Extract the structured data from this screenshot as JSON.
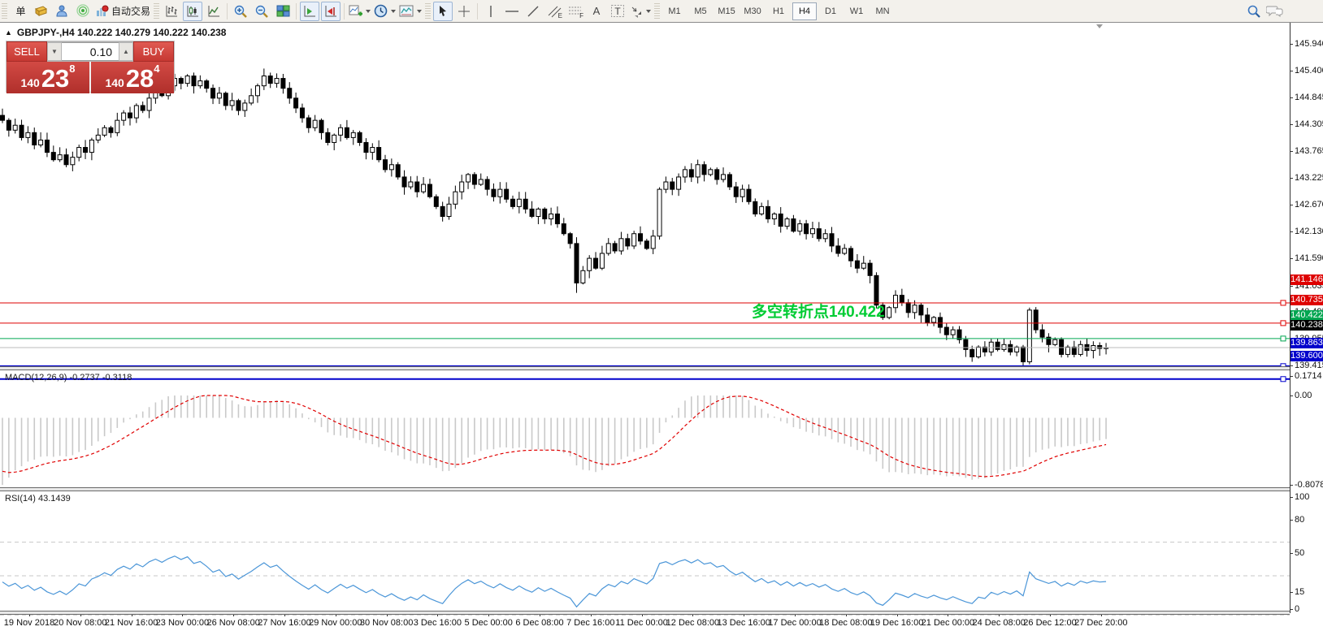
{
  "toolbar": {
    "new_order_label": "单",
    "autotrading_label": "自动交易",
    "letters": {
      "channel": "E",
      "fibo": "F",
      "text": "A",
      "label": "T"
    },
    "timeframes": [
      "M1",
      "M5",
      "M15",
      "M30",
      "H1",
      "H4",
      "D1",
      "W1",
      "MN"
    ],
    "active_timeframe": "H4"
  },
  "chart": {
    "title": "GBPJPY-,H4  140.222 140.279 140.222 140.238",
    "one_click": {
      "sell_label": "SELL",
      "buy_label": "BUY",
      "volume": "0.10",
      "sell_small": "140",
      "sell_big": "23",
      "sell_sup": "8",
      "buy_small": "140",
      "buy_big": "28",
      "buy_sup": "4"
    },
    "annotation": {
      "text": "多空转折点140.422",
      "color": "#00CC33"
    },
    "price_axis_ticks": [
      "145.940",
      "145.400",
      "144.845",
      "144.305",
      "143.765",
      "143.225",
      "142.670",
      "142.130",
      "141.590",
      "141.035",
      "140.495",
      "139.955",
      "139.415"
    ],
    "hlines": [
      {
        "label": "141.146",
        "value": 141.146,
        "color": "#DE0000",
        "width": 1
      },
      {
        "label": "140.735",
        "value": 140.735,
        "color": "#DE0000",
        "width": 1
      },
      {
        "label": "140.422",
        "value": 140.422,
        "color": "#00A651",
        "width": 1
      },
      {
        "label": "139.863",
        "value": 139.863,
        "color": "#0000CC",
        "width": 2
      },
      {
        "label": "139.600",
        "value": 139.6,
        "color": "#0000CC",
        "width": 2
      }
    ],
    "current_price": {
      "label": "140.238",
      "value": 140.238,
      "line_color": "#BBBBBB",
      "box_color": "#000000"
    },
    "time_axis": [
      "19 Nov 2018",
      "20 Nov 08:00",
      "21 Nov 16:00",
      "23 Nov 00:00",
      "26 Nov 08:00",
      "27 Nov 16:00",
      "29 Nov 00:00",
      "30 Nov 08:00",
      "3 Dec 16:00",
      "5 Dec 00:00",
      "6 Dec 08:00",
      "7 Dec 16:00",
      "11 Dec 00:00",
      "12 Dec 08:00",
      "13 Dec 16:00",
      "17 Dec 00:00",
      "18 Dec 08:00",
      "19 Dec 16:00",
      "21 Dec 00:00",
      "24 Dec 08:00",
      "26 Dec 12:00",
      "27 Dec 20:00"
    ]
  },
  "chart_data": {
    "type": "candlestick",
    "symbol": "GBPJPY-",
    "timeframe": "H4",
    "title": "GBPJPY-,H4",
    "ohlc_line": {
      "open": "140.222",
      "high": "140.279",
      "low": "140.222",
      "close": "140.238"
    },
    "y_range": [
      139.33,
      146.37
    ],
    "closes": [
      144.85,
      144.65,
      144.75,
      144.5,
      144.6,
      144.35,
      144.45,
      144.2,
      144.05,
      144.15,
      143.95,
      144.1,
      144.3,
      144.2,
      144.45,
      144.55,
      144.7,
      144.6,
      144.85,
      145.0,
      144.9,
      145.15,
      145.05,
      145.3,
      145.45,
      145.35,
      145.55,
      145.7,
      145.6,
      145.75,
      145.55,
      145.65,
      145.5,
      145.3,
      145.4,
      145.15,
      145.25,
      145.05,
      145.2,
      145.35,
      145.55,
      145.75,
      145.6,
      145.7,
      145.5,
      145.3,
      145.1,
      144.9,
      144.7,
      144.85,
      144.6,
      144.4,
      144.55,
      144.7,
      144.5,
      144.6,
      144.4,
      144.2,
      144.3,
      144.05,
      143.85,
      143.95,
      143.7,
      143.5,
      143.6,
      143.4,
      143.55,
      143.3,
      143.1,
      142.9,
      143.15,
      143.4,
      143.6,
      143.75,
      143.55,
      143.65,
      143.45,
      143.3,
      143.45,
      143.25,
      143.1,
      143.25,
      143.05,
      142.9,
      143.05,
      142.85,
      142.95,
      142.75,
      142.55,
      142.35,
      141.55,
      141.8,
      142.05,
      141.85,
      142.15,
      142.35,
      142.2,
      142.45,
      142.3,
      142.55,
      142.4,
      142.25,
      142.5,
      143.45,
      143.6,
      143.45,
      143.7,
      143.85,
      143.7,
      143.95,
      143.75,
      143.85,
      143.65,
      143.75,
      143.5,
      143.3,
      143.45,
      143.2,
      142.95,
      143.1,
      142.85,
      142.95,
      142.7,
      142.85,
      142.6,
      142.75,
      142.55,
      142.65,
      142.45,
      142.55,
      142.3,
      142.15,
      142.25,
      142.0,
      141.85,
      141.95,
      141.7,
      141.1,
      140.85,
      141.05,
      141.3,
      141.15,
      140.95,
      141.1,
      140.9,
      140.75,
      140.85,
      140.65,
      140.5,
      140.6,
      140.4,
      140.2,
      140.05,
      140.25,
      140.15,
      140.35,
      140.2,
      140.3,
      140.15,
      140.25,
      139.95,
      141.0,
      140.6,
      140.45,
      140.3,
      140.4,
      140.1,
      140.25,
      140.1,
      140.3,
      140.18,
      140.28,
      140.22,
      140.238
    ],
    "macd": {
      "label": "MACD(12,26,9) -0.2737 -0.3118",
      "params": [
        12,
        26,
        9
      ],
      "last_macd": -0.2737,
      "last_signal": -0.3118,
      "scale": {
        "max": "0.1714",
        "zero": "0.00",
        "min": "-0.8078"
      },
      "seeds": {
        "ema12": 144.3,
        "ema26": 145.0,
        "signal": -0.45
      },
      "histogram_color": "#C9C9C9",
      "signal_color": "#E00000"
    },
    "rsi": {
      "label": "RSI(14) 43.1439",
      "period": 14,
      "last_value": 43.1439,
      "scale_labels": [
        "100",
        "80",
        "50",
        "15",
        "0"
      ],
      "levels_dashed": [
        80,
        50,
        15
      ],
      "line_color": "#4B96D8",
      "seeds": {
        "avg_gain": 0.08,
        "avg_loss": 0.1
      }
    }
  }
}
